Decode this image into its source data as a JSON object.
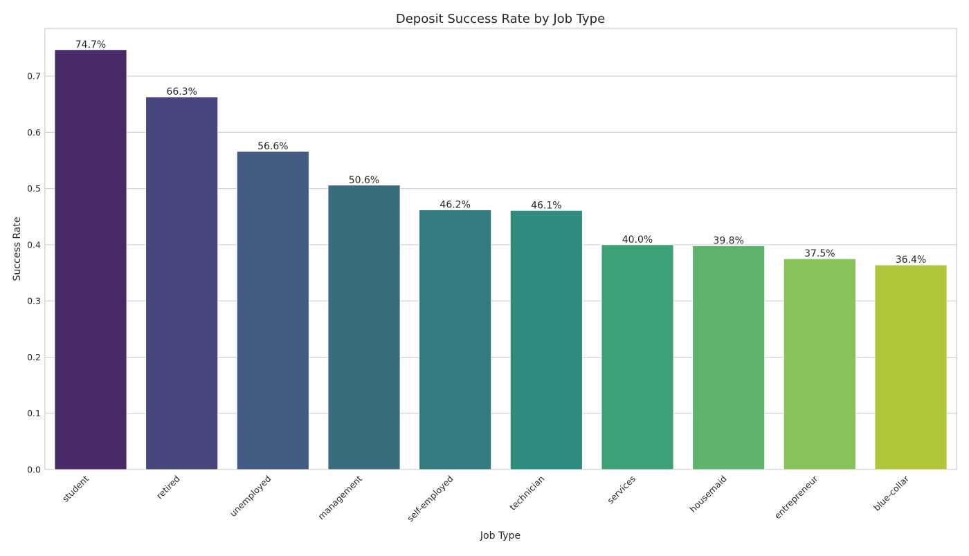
{
  "chart_data": {
    "type": "bar",
    "title": "Deposit Success Rate by Job Type",
    "xlabel": "Job Type",
    "ylabel": "Success Rate",
    "categories": [
      "student",
      "retired",
      "unemployed",
      "management",
      "self-employed",
      "technician",
      "services",
      "housemaid",
      "entrepreneur",
      "blue-collar"
    ],
    "values": [
      0.747,
      0.663,
      0.566,
      0.506,
      0.462,
      0.461,
      0.4,
      0.398,
      0.375,
      0.364
    ],
    "value_labels": [
      "74.7%",
      "66.3%",
      "56.6%",
      "50.6%",
      "46.2%",
      "46.1%",
      "40.0%",
      "39.8%",
      "37.5%",
      "36.4%"
    ],
    "colors": [
      "#482a66",
      "#48477d",
      "#435c83",
      "#3a6c80",
      "#327c7f",
      "#2f8b7c",
      "#3da076",
      "#5eb36c",
      "#87c25b",
      "#afc73b"
    ],
    "yticks": [
      "0.0",
      "0.1",
      "0.2",
      "0.3",
      "0.4",
      "0.5",
      "0.6",
      "0.7"
    ],
    "ylim": [
      0,
      0.785
    ],
    "grid": true,
    "legend": "none"
  }
}
